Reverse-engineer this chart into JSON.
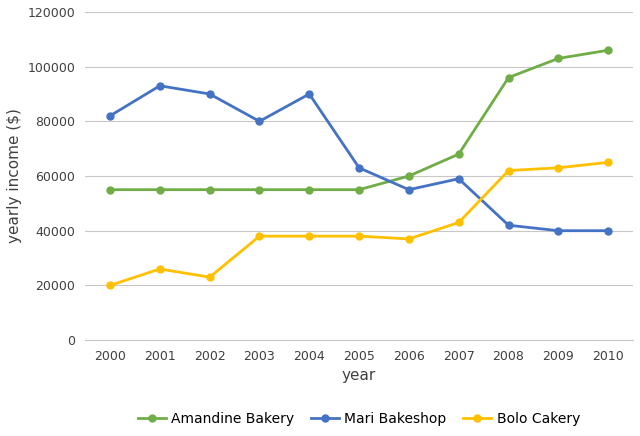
{
  "years": [
    2000,
    2001,
    2002,
    2003,
    2004,
    2005,
    2006,
    2007,
    2008,
    2009,
    2010
  ],
  "amandine": [
    55000,
    55000,
    55000,
    55000,
    55000,
    55000,
    60000,
    68000,
    96000,
    103000,
    106000
  ],
  "mari": [
    82000,
    93000,
    90000,
    80000,
    90000,
    63000,
    55000,
    59000,
    42000,
    40000,
    40000
  ],
  "bolo": [
    20000,
    26000,
    23000,
    38000,
    38000,
    38000,
    37000,
    43000,
    62000,
    63000,
    65000
  ],
  "amandine_color": "#70ad47",
  "mari_color": "#4472c4",
  "bolo_color": "#ffc000",
  "xlabel": "year",
  "ylabel": "yearly income ($)",
  "ylim": [
    0,
    120000
  ],
  "yticks": [
    0,
    20000,
    40000,
    60000,
    80000,
    100000,
    120000
  ],
  "legend_labels": [
    "Amandine Bakery",
    "Mari Bakeshop",
    "Bolo Cakery"
  ],
  "background_color": "#ffffff",
  "grid_color": "#c8c8c8",
  "spine_color": "#c8c8c8"
}
